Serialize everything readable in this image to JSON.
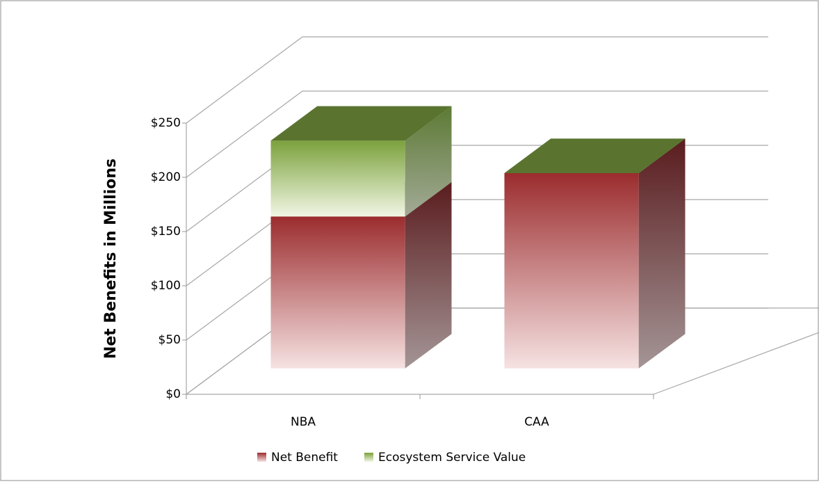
{
  "chart_data": {
    "type": "bar3d_stacked",
    "y_label": "Net Benefits in Millions",
    "categories": [
      "NBA",
      "CAA"
    ],
    "series": [
      {
        "name": "Net Benefit",
        "color": "#a8383a",
        "values": [
          140,
          180
        ]
      },
      {
        "name": "Ecosystem Service Value",
        "color": "#7fa640",
        "values": [
          70,
          0
        ]
      }
    ],
    "ylim": [
      0,
      250
    ],
    "yticks": [
      {
        "value": 0,
        "label": "$0"
      },
      {
        "value": 50,
        "label": "$50"
      },
      {
        "value": 100,
        "label": "$100"
      },
      {
        "value": 150,
        "label": "$150"
      },
      {
        "value": 200,
        "label": "$200"
      },
      {
        "value": 250,
        "label": "$250"
      }
    ],
    "grid": true,
    "legend": "bottom"
  }
}
